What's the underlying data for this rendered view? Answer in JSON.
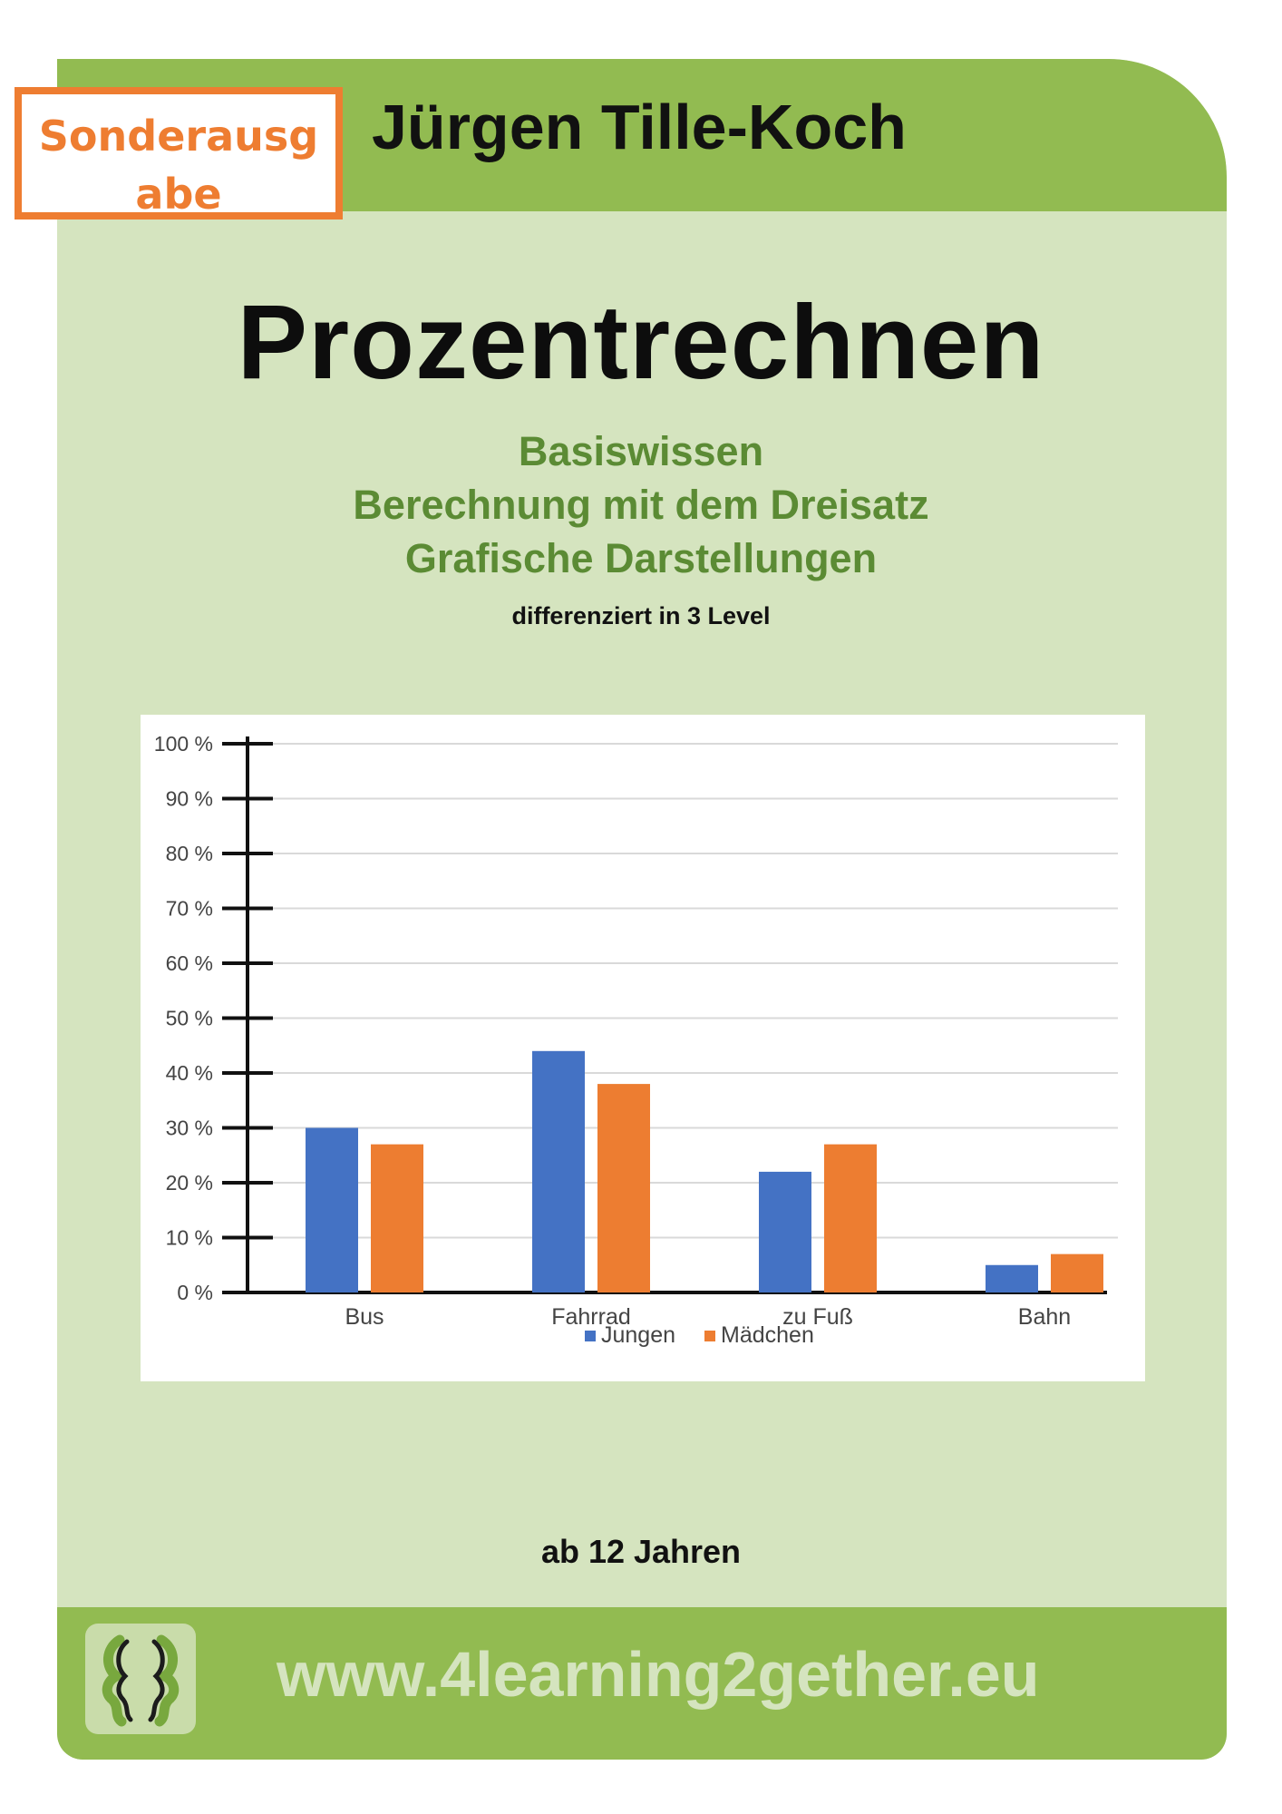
{
  "badge": {
    "text": "Sonderausgabe"
  },
  "header": {
    "author": "Jürgen Tille-Koch"
  },
  "title": "Prozentrechnen",
  "subtitles": [
    "Basiswissen",
    "Berechnung mit dem Dreisatz",
    "Grafische Darstellungen"
  ],
  "level_note": "differenziert in 3 Level",
  "age": "ab 12 Jahren",
  "footer": {
    "url": "www.4learning2gether.eu",
    "logo_icon": "two-faces-logo-icon"
  },
  "colors": {
    "header_green": "#92bb51",
    "panel_green": "#d5e4bf",
    "subtitle_green": "#5b8b34",
    "badge_orange": "#ee7d31",
    "series_jungen": "#4472c4",
    "series_maedchen": "#ed7d31"
  },
  "chart_data": {
    "type": "bar",
    "title": "",
    "xlabel": "",
    "ylabel": "",
    "categories": [
      "Bus",
      "Fahrrad",
      "zu Fuß",
      "Bahn"
    ],
    "series": [
      {
        "name": "Jungen",
        "values": [
          30,
          44,
          22,
          5
        ],
        "color": "#4472c4"
      },
      {
        "name": "Mädchen",
        "values": [
          27,
          38,
          27,
          7
        ],
        "color": "#ed7d31"
      }
    ],
    "yticks": [
      "0 %",
      "10 %",
      "20 %",
      "30 %",
      "40 %",
      "50 %",
      "60 %",
      "70 %",
      "80 %",
      "90 %",
      "100 %"
    ],
    "ylim": [
      0,
      100
    ],
    "grid": true,
    "legend_position": "bottom"
  }
}
